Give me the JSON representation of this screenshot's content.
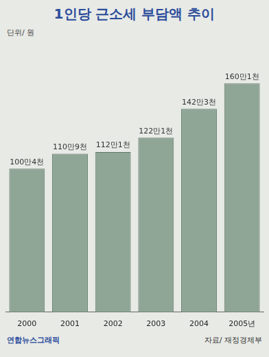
{
  "chart_data": {
    "type": "bar",
    "title": "1인당 근소세 부담액 추이",
    "subtitle": "단위/ 원",
    "categories": [
      "2000",
      "2001",
      "2002",
      "2003",
      "2004",
      "2005년"
    ],
    "values": [
      1004000,
      1109000,
      1121000,
      1221000,
      1423000,
      1601000
    ],
    "value_labels": [
      "100만4천",
      "110만9천",
      "112만1천",
      "122만1천",
      "142만3천",
      "160만1천"
    ],
    "data_labels": true,
    "tick_labels": "x",
    "grid": false,
    "color": "#8fa596",
    "annotations": [
      "연합뉴스그래픽",
      "자료/ 재정경제부"
    ]
  }
}
